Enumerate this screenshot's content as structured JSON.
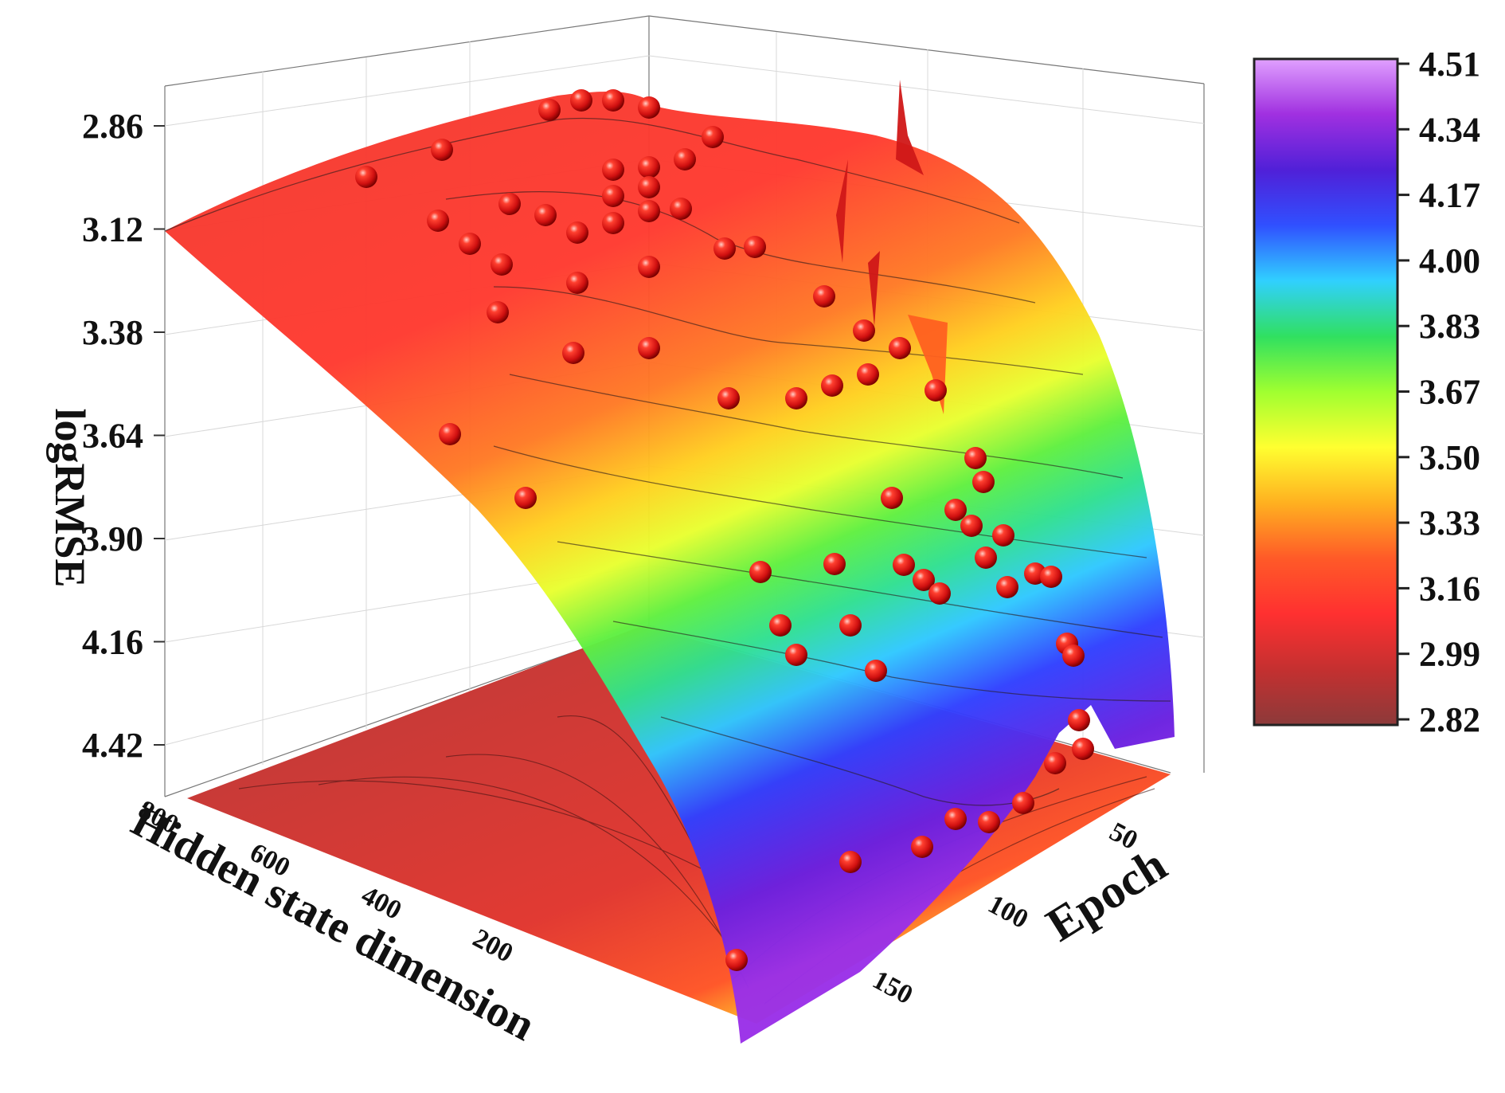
{
  "chart_data": {
    "type": "surface3d",
    "z_axis": {
      "label": "logRMSE",
      "ticks": [
        "2.86",
        "3.12",
        "3.38",
        "3.64",
        "3.90",
        "4.16",
        "4.42"
      ],
      "range": [
        2.86,
        4.42
      ],
      "reversed": true
    },
    "x_axis": {
      "label": "Hidden state dimension",
      "ticks": [
        "800",
        "600",
        "400",
        "200"
      ]
    },
    "y_axis": {
      "label": "Epoch",
      "ticks": [
        "50",
        "100",
        "150"
      ]
    },
    "colorbar": {
      "ticks": [
        "4.51",
        "4.34",
        "4.17",
        "4.00",
        "3.83",
        "3.67",
        "3.50",
        "3.33",
        "3.16",
        "2.99",
        "2.82"
      ],
      "min": 2.82,
      "max": 4.51,
      "colors": [
        "#8c3a3a",
        "#c43030",
        "#ff3030",
        "#ff5a28",
        "#ffb020",
        "#ffff30",
        "#a0ff30",
        "#30e060",
        "#30d0ff",
        "#3050ff",
        "#5020d8",
        "#a030e0",
        "#e0a0ff"
      ]
    },
    "grid": true
  }
}
